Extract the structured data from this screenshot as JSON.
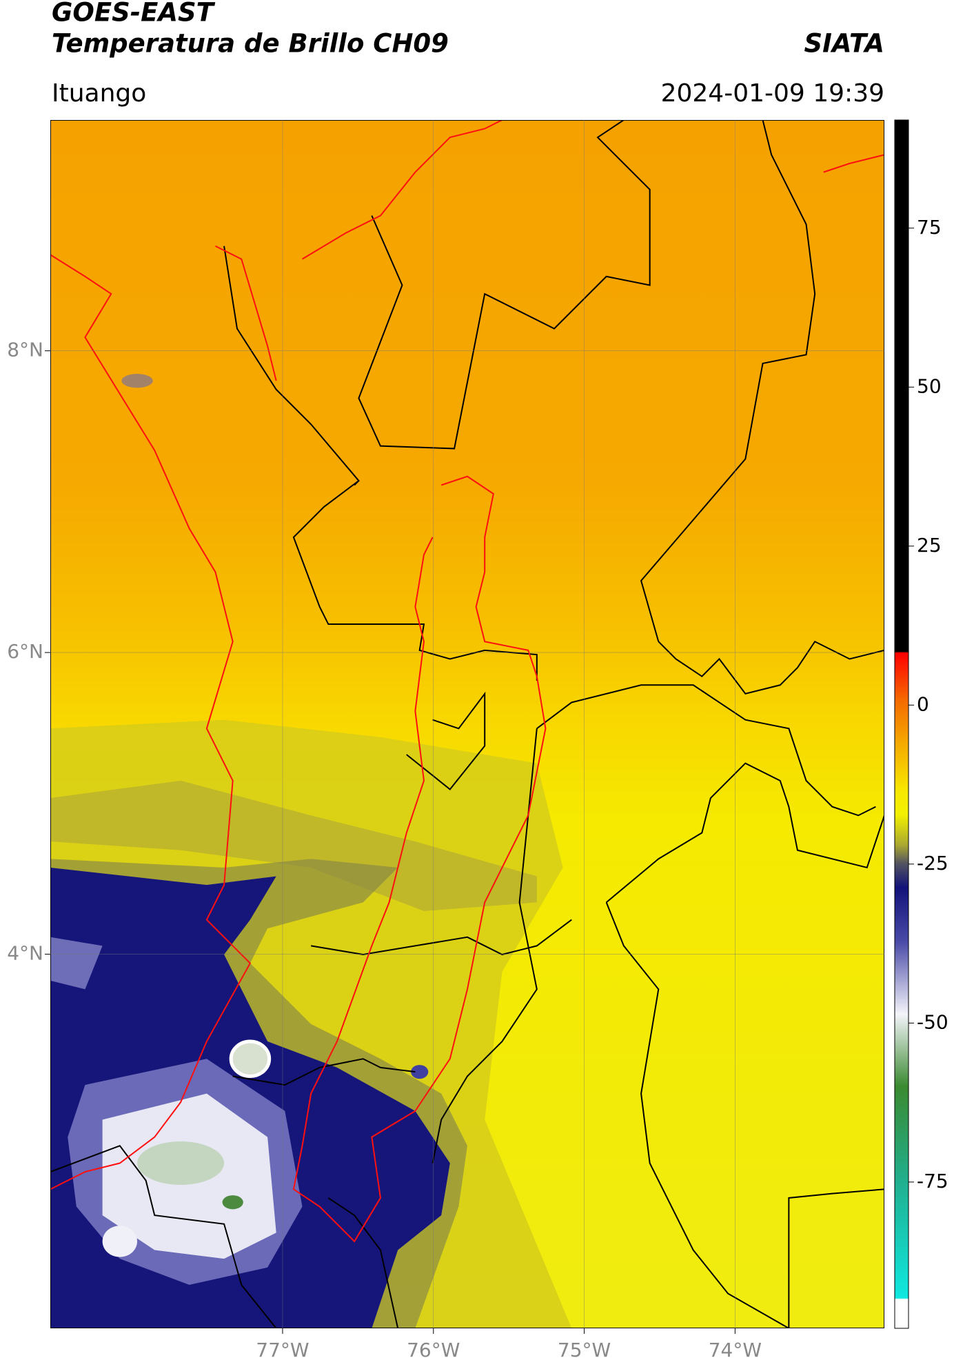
{
  "header": {
    "title": "GOES-EAST",
    "subtitle": "Temperatura de Brillo CH09",
    "brand": "SIATA",
    "region": "Ituango",
    "datetime": "2024-01-09 19:39"
  },
  "map": {
    "xlim": [
      -78.54,
      -73.01
    ],
    "ylim": [
      1.52,
      9.53
    ],
    "xticks": [
      {
        "value": -77,
        "label": "77°W"
      },
      {
        "value": -76,
        "label": "76°W"
      },
      {
        "value": -75,
        "label": "75°W"
      },
      {
        "value": -74,
        "label": "74°W"
      }
    ],
    "yticks": [
      {
        "value": 4,
        "label": "4°N"
      },
      {
        "value": 6,
        "label": "6°N"
      },
      {
        "value": 8,
        "label": "8°N"
      }
    ],
    "grid": true
  },
  "colorbar": {
    "ylim": [
      -98,
      92
    ],
    "yticks": [
      -75,
      -50,
      -25,
      0,
      25,
      50,
      75
    ]
  }
}
